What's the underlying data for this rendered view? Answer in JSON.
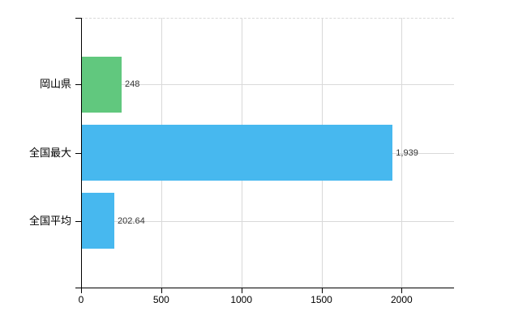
{
  "chart_data": {
    "type": "bar",
    "orientation": "horizontal",
    "title": "",
    "xlabel": "",
    "ylabel": "",
    "categories": [
      "岡山県",
      "全国最大",
      "全国平均"
    ],
    "values": [
      248,
      1939,
      202.64
    ],
    "value_labels": [
      "248",
      "1,939",
      "202.64"
    ],
    "bar_colors": [
      "#61c87e",
      "#47b8ef",
      "#47b8ef"
    ],
    "xlim": [
      0,
      2327
    ],
    "x_ticks": [
      0,
      500,
      1000,
      1500,
      2000
    ],
    "x_tick_labels": [
      "0",
      "500",
      "1000",
      "1500",
      "2000"
    ],
    "grid": true,
    "legend": "none",
    "colors": {
      "background": "#ffffff",
      "gridline": "#d9d9d9",
      "axis": "#000000",
      "category_text": "#000000",
      "value_text": "#333333",
      "tick_text": "#000000"
    }
  }
}
